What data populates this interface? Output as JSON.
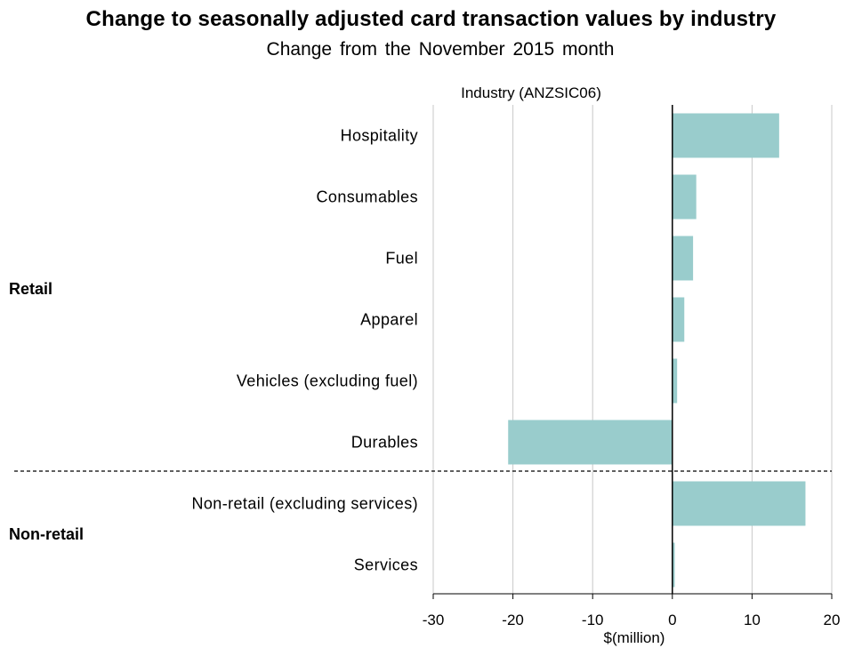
{
  "header": {
    "title": "Change to seasonally adjusted card transaction values by industry",
    "subtitle": "Change from the November 2015 month"
  },
  "chart_data": {
    "type": "bar",
    "orientation": "horizontal",
    "title": "Change to seasonally adjusted card transaction values by industry",
    "subtitle": "Change from the November 2015 month",
    "xlabel": "$(million)",
    "ylabel": "Industry (ANZSIC06)",
    "xlim": [
      -30,
      20
    ],
    "xticks": [
      -30,
      -20,
      -10,
      0,
      10,
      20
    ],
    "grid": true,
    "bar_color": "#99cccc",
    "groups": [
      {
        "name": "Retail",
        "categories": [
          "Hospitality",
          "Consumables",
          "Fuel",
          "Apparel",
          "Vehicles (excluding fuel)",
          "Durables"
        ]
      },
      {
        "name": "Non-retail",
        "categories": [
          "Non-retail (excluding services)",
          "Services"
        ]
      }
    ],
    "categories": [
      "Hospitality",
      "Consumables",
      "Fuel",
      "Apparel",
      "Vehicles (excluding fuel)",
      "Durables",
      "Non-retail (excluding services)",
      "Services"
    ],
    "values": [
      13.4,
      3.0,
      2.6,
      1.5,
      0.6,
      -20.6,
      16.7,
      0.3
    ]
  }
}
